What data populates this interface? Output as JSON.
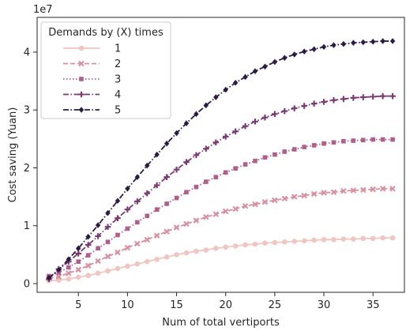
{
  "chart_data": {
    "type": "line",
    "xlabel": "Num of total vertiports",
    "ylabel": "Cost saving (Yuan)",
    "y_offset_label": "1e7",
    "xlim": [
      0.8,
      38.2
    ],
    "ylim": [
      -0.15,
      4.6
    ],
    "xticks": [
      5,
      10,
      15,
      20,
      25,
      30,
      35
    ],
    "yticks": [
      0,
      1,
      2,
      3,
      4
    ],
    "grid": false,
    "legend": {
      "title": "Demands by (X) times",
      "placement": "top-left"
    },
    "x": [
      2,
      3,
      4,
      5,
      6,
      7,
      8,
      9,
      10,
      11,
      12,
      13,
      14,
      15,
      16,
      17,
      18,
      19,
      20,
      21,
      22,
      23,
      24,
      25,
      26,
      27,
      28,
      29,
      30,
      31,
      32,
      33,
      34,
      35,
      36,
      37
    ],
    "series": [
      {
        "name": "1",
        "color": "#efc6c0",
        "marker": "circle",
        "dash": "",
        "values": [
          0.05,
          0.06,
          0.08,
          0.11,
          0.14,
          0.18,
          0.22,
          0.26,
          0.3,
          0.34,
          0.38,
          0.42,
          0.46,
          0.5,
          0.53,
          0.56,
          0.58,
          0.61,
          0.63,
          0.65,
          0.67,
          0.68,
          0.7,
          0.71,
          0.72,
          0.73,
          0.74,
          0.75,
          0.76,
          0.76,
          0.77,
          0.77,
          0.78,
          0.78,
          0.79,
          0.79
        ]
      },
      {
        "name": "2",
        "color": "#d890a0",
        "marker": "x",
        "dash": "6,3",
        "values": [
          0.09,
          0.12,
          0.18,
          0.24,
          0.31,
          0.39,
          0.47,
          0.54,
          0.62,
          0.69,
          0.76,
          0.83,
          0.9,
          0.97,
          1.03,
          1.09,
          1.15,
          1.2,
          1.25,
          1.29,
          1.34,
          1.37,
          1.41,
          1.44,
          1.47,
          1.5,
          1.52,
          1.55,
          1.57,
          1.58,
          1.6,
          1.61,
          1.62,
          1.63,
          1.64,
          1.64
        ]
      },
      {
        "name": "3",
        "color": "#b05e8c",
        "marker": "square",
        "dash": "1.5,2.5",
        "values": [
          0.13,
          0.19,
          0.28,
          0.38,
          0.49,
          0.61,
          0.72,
          0.84,
          0.95,
          1.06,
          1.17,
          1.28,
          1.38,
          1.48,
          1.58,
          1.67,
          1.76,
          1.84,
          1.92,
          1.99,
          2.06,
          2.12,
          2.18,
          2.23,
          2.28,
          2.32,
          2.36,
          2.39,
          2.42,
          2.44,
          2.46,
          2.47,
          2.48,
          2.49,
          2.49,
          2.49
        ]
      },
      {
        "name": "4",
        "color": "#7a3b73",
        "marker": "plus",
        "dash": "7,2.5,1.5,2.5",
        "values": [
          0.08,
          0.25,
          0.38,
          0.52,
          0.67,
          0.82,
          0.98,
          1.13,
          1.28,
          1.42,
          1.56,
          1.7,
          1.84,
          1.97,
          2.1,
          2.22,
          2.33,
          2.44,
          2.54,
          2.63,
          2.72,
          2.8,
          2.87,
          2.93,
          2.98,
          3.03,
          3.07,
          3.11,
          3.14,
          3.17,
          3.19,
          3.21,
          3.22,
          3.23,
          3.24,
          3.24
        ]
      },
      {
        "name": "5",
        "color": "#2c1c44",
        "marker": "diamond",
        "dash": "7,2.5,1.5,2.5",
        "values": [
          0.1,
          0.24,
          0.42,
          0.61,
          0.81,
          1.01,
          1.22,
          1.43,
          1.64,
          1.84,
          2.04,
          2.23,
          2.42,
          2.6,
          2.77,
          2.93,
          3.08,
          3.22,
          3.35,
          3.47,
          3.57,
          3.67,
          3.75,
          3.83,
          3.9,
          3.96,
          4.01,
          4.05,
          4.09,
          4.12,
          4.14,
          4.16,
          4.17,
          4.18,
          4.19,
          4.19
        ]
      }
    ]
  }
}
